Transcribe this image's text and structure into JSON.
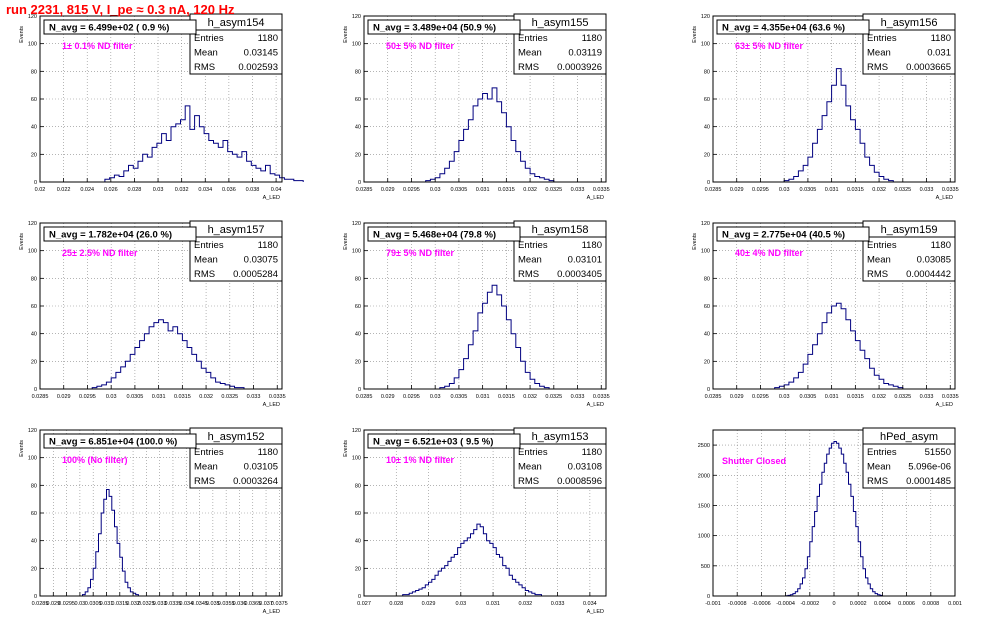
{
  "run_title": "run 2231,   815 V, I_pe ≈ 0.3 nA, 120 Hz",
  "style": {
    "hist_color": "#000080",
    "annotation_color": "#ff00ff",
    "title_color": "#ff0000",
    "grid_color": "#888888"
  },
  "chart_data": [
    {
      "type": "histogram",
      "name": "h_asym154",
      "ylabel": "Events",
      "xlabel": "A_LED",
      "xlim": [
        0.02,
        0.0405
      ],
      "ylim": [
        0,
        120
      ],
      "grid": true,
      "legend_position": "top-right",
      "xticks": [
        "0.02",
        "0.022",
        "0.024",
        "0.026",
        "0.028",
        "0.03",
        "0.032",
        "0.034",
        "0.036",
        "0.038",
        "0.04"
      ],
      "xtick_values": [
        0.02,
        0.022,
        0.024,
        0.026,
        0.028,
        0.03,
        0.032,
        0.034,
        0.036,
        0.038,
        0.04
      ],
      "yticks": [
        "0",
        "20",
        "40",
        "60",
        "80",
        "100",
        "120"
      ],
      "ytick_values": [
        0,
        20,
        40,
        60,
        80,
        100,
        120
      ],
      "navg": "N_avg = 6.499e+02 ( 0.9 %)",
      "filter": "1± 0.1% ND filter",
      "stats": {
        "entries": "1180",
        "mean": "0.03145",
        "rms": "0.002593"
      },
      "bins": {
        "start": 0.0255,
        "width": 0.0004,
        "counts": [
          2,
          3,
          5,
          4,
          8,
          12,
          10,
          15,
          20,
          18,
          25,
          28,
          35,
          30,
          40,
          42,
          45,
          55,
          38,
          48,
          40,
          35,
          30,
          28,
          25,
          30,
          22,
          20,
          18,
          22,
          15,
          12,
          10,
          8,
          12,
          6,
          5,
          3,
          2,
          2,
          1,
          1
        ]
      }
    },
    {
      "type": "histogram",
      "name": "h_asym155",
      "ylabel": "Events",
      "xlabel": "A_LED",
      "xlim": [
        0.0285,
        0.0336
      ],
      "ylim": [
        0,
        120
      ],
      "grid": true,
      "legend_position": "top-right",
      "xticks": [
        "0.0285",
        "0.029",
        "0.0295",
        "0.03",
        "0.0305",
        "0.031",
        "0.0315",
        "0.032",
        "0.0325",
        "0.033",
        "0.0335"
      ],
      "xtick_values": [
        0.0285,
        0.029,
        0.0295,
        0.03,
        0.0305,
        0.031,
        0.0315,
        0.032,
        0.0325,
        0.033,
        0.0335
      ],
      "yticks": [
        "0",
        "20",
        "40",
        "60",
        "80",
        "100",
        "120"
      ],
      "ytick_values": [
        0,
        20,
        40,
        60,
        80,
        100,
        120
      ],
      "navg": "N_avg = 3.489e+04 (50.9 %)",
      "filter": "50± 5% ND filter",
      "stats": {
        "entries": "1180",
        "mean": "0.03119",
        "rms": "0.0003926"
      },
      "bins": {
        "start": 0.0298,
        "width": 0.0001,
        "counts": [
          1,
          2,
          3,
          6,
          10,
          15,
          22,
          30,
          38,
          45,
          55,
          60,
          64,
          60,
          68,
          58,
          50,
          40,
          30,
          22,
          15,
          10,
          6,
          4,
          3,
          2,
          1
        ]
      }
    },
    {
      "type": "histogram",
      "name": "h_asym156",
      "ylabel": "Events",
      "xlabel": "A_LED",
      "xlim": [
        0.0285,
        0.0336
      ],
      "ylim": [
        0,
        120
      ],
      "grid": true,
      "legend_position": "top-right",
      "xticks": [
        "0.0285",
        "0.029",
        "0.0295",
        "0.03",
        "0.0305",
        "0.031",
        "0.0315",
        "0.032",
        "0.0325",
        "0.033",
        "0.0335"
      ],
      "xtick_values": [
        0.0285,
        0.029,
        0.0295,
        0.03,
        0.0305,
        0.031,
        0.0315,
        0.032,
        0.0325,
        0.033,
        0.0335
      ],
      "yticks": [
        "0",
        "20",
        "40",
        "60",
        "80",
        "100",
        "120"
      ],
      "ytick_values": [
        0,
        20,
        40,
        60,
        80,
        100,
        120
      ],
      "navg": "N_avg = 4.355e+04 (63.6 %)",
      "filter": "63± 5% ND filter",
      "stats": {
        "entries": "1180",
        "mean": "0.031",
        "rms": "0.0003665"
      },
      "bins": {
        "start": 0.03,
        "width": 0.0001,
        "counts": [
          1,
          2,
          4,
          8,
          12,
          18,
          28,
          38,
          48,
          58,
          70,
          82,
          70,
          55,
          45,
          38,
          28,
          18,
          12,
          7,
          4,
          2,
          1
        ]
      }
    },
    {
      "type": "histogram",
      "name": "h_asym157",
      "ylabel": "Events",
      "xlabel": "A_LED",
      "xlim": [
        0.0285,
        0.0336
      ],
      "ylim": [
        0,
        120
      ],
      "grid": true,
      "legend_position": "top-right",
      "xticks": [
        "0.0285",
        "0.029",
        "0.0295",
        "0.03",
        "0.0305",
        "0.031",
        "0.0315",
        "0.032",
        "0.0325",
        "0.033",
        "0.0335"
      ],
      "xtick_values": [
        0.0285,
        0.029,
        0.0295,
        0.03,
        0.0305,
        0.031,
        0.0315,
        0.032,
        0.0325,
        0.033,
        0.0335
      ],
      "yticks": [
        "0",
        "20",
        "40",
        "60",
        "80",
        "100",
        "120"
      ],
      "ytick_values": [
        0,
        20,
        40,
        60,
        80,
        100,
        120
      ],
      "navg": "N_avg = 1.782e+04 (26.0 %)",
      "filter": "25± 2.5% ND filter",
      "stats": {
        "entries": "1180",
        "mean": "0.03075",
        "rms": "0.0005284"
      },
      "bins": {
        "start": 0.0296,
        "width": 0.0001,
        "counts": [
          1,
          2,
          3,
          5,
          8,
          12,
          16,
          20,
          25,
          30,
          35,
          40,
          45,
          48,
          50,
          48,
          42,
          45,
          40,
          35,
          30,
          25,
          20,
          15,
          12,
          8,
          5,
          4,
          3,
          2,
          1,
          1
        ]
      }
    },
    {
      "type": "histogram",
      "name": "h_asym158",
      "ylabel": "Events",
      "xlabel": "A_LED",
      "xlim": [
        0.0285,
        0.0336
      ],
      "ylim": [
        0,
        120
      ],
      "grid": true,
      "legend_position": "top-right",
      "xticks": [
        "0.0285",
        "0.029",
        "0.0295",
        "0.03",
        "0.0305",
        "0.031",
        "0.0315",
        "0.032",
        "0.0325",
        "0.033",
        "0.0335"
      ],
      "xtick_values": [
        0.0285,
        0.029,
        0.0295,
        0.03,
        0.0305,
        0.031,
        0.0315,
        0.032,
        0.0325,
        0.033,
        0.0335
      ],
      "yticks": [
        "0",
        "20",
        "40",
        "60",
        "80",
        "100",
        "120"
      ],
      "ytick_values": [
        0,
        20,
        40,
        60,
        80,
        100,
        120
      ],
      "navg": "N_avg = 5.468e+04 (79.8 %)",
      "filter": "79± 5% ND filter",
      "stats": {
        "entries": "1180",
        "mean": "0.03101",
        "rms": "0.0003405"
      },
      "bins": {
        "start": 0.0301,
        "width": 0.0001,
        "counts": [
          1,
          2,
          4,
          8,
          14,
          22,
          32,
          42,
          55,
          62,
          70,
          75,
          68,
          60,
          50,
          40,
          30,
          20,
          12,
          7,
          4,
          2,
          1
        ]
      }
    },
    {
      "type": "histogram",
      "name": "h_asym159",
      "ylabel": "Events",
      "xlabel": "A_LED",
      "xlim": [
        0.0285,
        0.0336
      ],
      "ylim": [
        0,
        120
      ],
      "grid": true,
      "legend_position": "top-right",
      "xticks": [
        "0.0285",
        "0.029",
        "0.0295",
        "0.03",
        "0.0305",
        "0.031",
        "0.0315",
        "0.032",
        "0.0325",
        "0.033",
        "0.0335"
      ],
      "xtick_values": [
        0.0285,
        0.029,
        0.0295,
        0.03,
        0.0305,
        0.031,
        0.0315,
        0.032,
        0.0325,
        0.033,
        0.0335
      ],
      "yticks": [
        "0",
        "20",
        "40",
        "60",
        "80",
        "100",
        "120"
      ],
      "ytick_values": [
        0,
        20,
        40,
        60,
        80,
        100,
        120
      ],
      "navg": "N_avg = 2.775e+04 (40.5 %)",
      "filter": "40± 4% ND filter",
      "stats": {
        "entries": "1180",
        "mean": "0.03085",
        "rms": "0.0004442"
      },
      "bins": {
        "start": 0.0298,
        "width": 0.0001,
        "counts": [
          1,
          2,
          3,
          5,
          8,
          12,
          18,
          25,
          32,
          40,
          48,
          55,
          60,
          62,
          58,
          50,
          42,
          35,
          28,
          22,
          15,
          10,
          7,
          4,
          3,
          2,
          1
        ]
      }
    },
    {
      "type": "histogram",
      "name": "h_asym152",
      "ylabel": "Events",
      "xlabel": "A_LED",
      "xlim": [
        0.0285,
        0.0376
      ],
      "ylim": [
        0,
        120
      ],
      "grid": true,
      "legend_position": "top-right",
      "xticks": [
        "0.0285",
        "0.029",
        "0.0295",
        "0.03",
        "0.0305",
        "0.031",
        "0.0315",
        "0.032",
        "0.0325",
        "0.033",
        "0.0335",
        "0.034",
        "0.0345",
        "0.035",
        "0.0355",
        "0.036",
        "0.0365",
        "0.037",
        "0.0375"
      ],
      "xtick_values": [
        0.0285,
        0.029,
        0.0295,
        0.03,
        0.0305,
        0.031,
        0.0315,
        0.032,
        0.0325,
        0.033,
        0.0335,
        0.034,
        0.0345,
        0.035,
        0.0355,
        0.036,
        0.0365,
        0.037,
        0.0375
      ],
      "yticks": [
        "0",
        "20",
        "40",
        "60",
        "80",
        "100",
        "120"
      ],
      "ytick_values": [
        0,
        20,
        40,
        60,
        80,
        100,
        120
      ],
      "navg": "N_avg = 6.851e+04 (100.0 %)",
      "filter": "100% (No filter)",
      "stats": {
        "entries": "1180",
        "mean": "0.03105",
        "rms": "0.0003264"
      },
      "bins": {
        "start": 0.0301,
        "width": 0.0001,
        "counts": [
          1,
          3,
          6,
          12,
          20,
          32,
          45,
          60,
          70,
          77,
          72,
          62,
          50,
          38,
          28,
          18,
          10,
          6,
          3,
          2,
          1
        ]
      }
    },
    {
      "type": "histogram",
      "name": "h_asym153",
      "ylabel": "Events",
      "xlabel": "A_LED",
      "xlim": [
        0.027,
        0.0345
      ],
      "ylim": [
        0,
        120
      ],
      "grid": true,
      "legend_position": "top-right",
      "xticks": [
        "0.027",
        "0.028",
        "0.029",
        "0.03",
        "0.031",
        "0.032",
        "0.033",
        "0.034"
      ],
      "xtick_values": [
        0.027,
        0.028,
        0.029,
        0.03,
        0.031,
        0.032,
        0.033,
        0.034
      ],
      "yticks": [
        "0",
        "20",
        "40",
        "60",
        "80",
        "100",
        "120"
      ],
      "ytick_values": [
        0,
        20,
        40,
        60,
        80,
        100,
        120
      ],
      "navg": "N_avg = 6.521e+03 ( 9.5 %)",
      "filter": "10± 1% ND filter",
      "stats": {
        "entries": "1180",
        "mean": "0.03108",
        "rms": "0.0008596"
      },
      "bins": {
        "start": 0.0282,
        "width": 0.0001,
        "counts": [
          1,
          1,
          2,
          3,
          4,
          5,
          6,
          8,
          10,
          12,
          15,
          18,
          20,
          22,
          25,
          28,
          30,
          35,
          38,
          40,
          42,
          45,
          48,
          52,
          50,
          45,
          40,
          38,
          35,
          30,
          28,
          22,
          20,
          15,
          12,
          10,
          8,
          6,
          4,
          3,
          2,
          1,
          1
        ]
      }
    },
    {
      "type": "histogram",
      "name": "hPed_asym",
      "ylabel": "",
      "xlabel": "",
      "xlim": [
        -0.001,
        0.001
      ],
      "ylim": [
        0,
        2750
      ],
      "grid": true,
      "legend_position": "top-right",
      "xticks": [
        "-0.001",
        "-0.0008",
        "-0.0006",
        "-0.0004",
        "-0.0002",
        "0",
        "0.0002",
        "0.0004",
        "0.0006",
        "0.0008",
        "0.001"
      ],
      "xtick_values": [
        -0.001,
        -0.0008,
        -0.0006,
        -0.0004,
        -0.0002,
        0,
        0.0002,
        0.0004,
        0.0006,
        0.0008,
        0.001
      ],
      "yticks": [
        "0",
        "500",
        "1000",
        "1500",
        "2000",
        "2500"
      ],
      "ytick_values": [
        0,
        500,
        1000,
        1500,
        2000,
        2500
      ],
      "navg": "",
      "filter": "Shutter Closed",
      "stats": {
        "entries": "51550",
        "mean": "5.096e-06",
        "rms": "0.0001485"
      },
      "bins": {
        "start": -0.0004,
        "width": 2e-05,
        "counts": [
          5,
          10,
          20,
          40,
          70,
          120,
          200,
          300,
          450,
          650,
          900,
          1150,
          1400,
          1650,
          1850,
          2050,
          2200,
          2350,
          2450,
          2530,
          2560,
          2530,
          2450,
          2350,
          2200,
          2050,
          1850,
          1650,
          1400,
          1150,
          900,
          650,
          450,
          300,
          200,
          120,
          70,
          40,
          20,
          10
        ]
      }
    }
  ]
}
